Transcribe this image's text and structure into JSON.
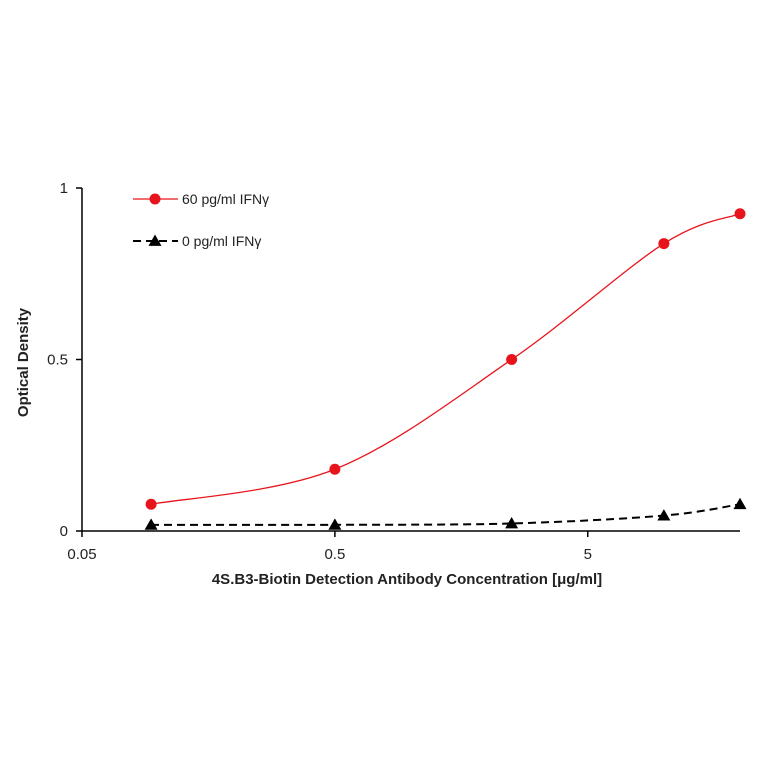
{
  "chart_data": {
    "type": "line",
    "xlabel": "4S.B3-Biotin Detection Antibody Concentration [μg/ml]",
    "ylabel": "Optical Density",
    "x_scale": "log",
    "xlim": [
      0.05,
      20
    ],
    "ylim": [
      0,
      1
    ],
    "x_ticks": [
      0.05,
      0.5,
      5
    ],
    "x_tick_labels": [
      "0.05",
      "0.5",
      "5"
    ],
    "y_ticks": [
      0,
      0.5,
      1
    ],
    "y_tick_labels": [
      "0",
      "0.5",
      "1"
    ],
    "grid": false,
    "legend_position": "top-left",
    "series": [
      {
        "name": "60 pg/ml IFNγ",
        "color": "#e8141c",
        "marker": "circle",
        "line_style": "solid",
        "x": [
          0.0938,
          0.5,
          2.5,
          10,
          20
        ],
        "y": [
          0.078,
          0.18,
          0.5,
          0.838,
          0.925
        ]
      },
      {
        "name": "0 pg/ml IFNγ",
        "color": "#000000",
        "marker": "triangle",
        "line_style": "dashed",
        "x": [
          0.0938,
          0.5,
          2.5,
          10,
          20
        ],
        "y": [
          0.018,
          0.018,
          0.022,
          0.045,
          0.078
        ]
      }
    ]
  }
}
